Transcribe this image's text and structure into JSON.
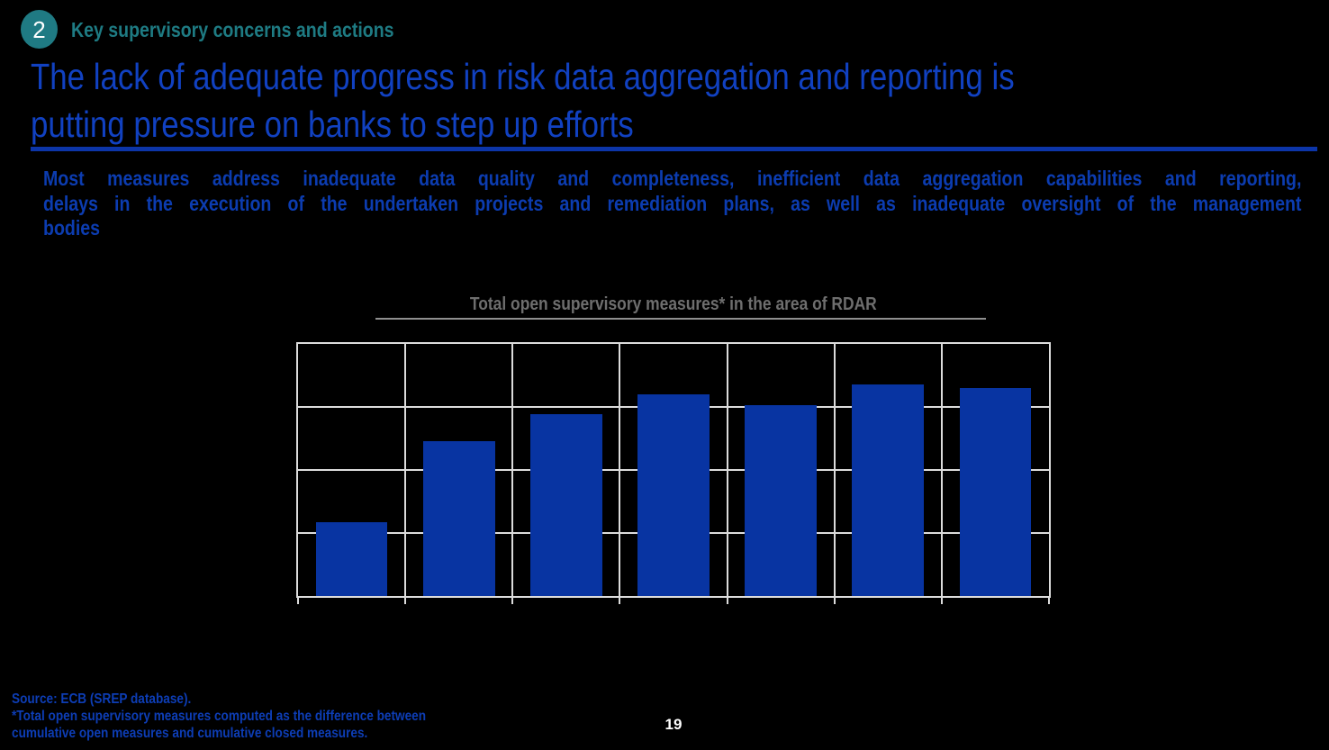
{
  "header": {
    "badge_number": "2",
    "label": "Key supervisory concerns and actions"
  },
  "title": {
    "line1": "The lack of adequate progress in risk data aggregation and reporting is",
    "line2": "putting pressure on banks to step up efforts"
  },
  "summary": {
    "lines": [
      "Most measures address inadequate data quality and completeness, inefficient data aggregation capabilities and reporting,",
      "delays in the execution of the undertaken projects and remediation plans, as well as inadequate oversight of the management",
      "bodies"
    ]
  },
  "chart": {
    "title": "Total open supervisory measures* in the area of RDAR"
  },
  "chart_data": {
    "type": "bar",
    "title": "Total open supervisory measures* in the area of RDAR",
    "categories": [
      "",
      "",
      "",
      "",
      "",
      "",
      ""
    ],
    "values": [
      1.17,
      2.46,
      2.89,
      3.2,
      3.03,
      3.36,
      3.3
    ],
    "ylim": [
      0,
      4
    ],
    "xlabel": "",
    "ylabel": "",
    "grid": true,
    "legend": false,
    "tick_labels_visible": false
  },
  "footnote": {
    "lines": [
      "Source: ECB (SREP database).",
      "*Total open supervisory measures computed as the difference between",
      "cumulative open measures and cumulative closed measures."
    ]
  },
  "page": {
    "number": "19"
  },
  "colors": {
    "background": "#000000",
    "badge_teal": "#1F7A83",
    "header_teal": "#1E7B83",
    "title_blue": "#1141C1",
    "title_rule_blue": "#0C35A8",
    "summary_blue": "#0C3CB0",
    "chart_title_gray": "#6E6E6E",
    "bar_blue": "#0834A2",
    "grid_gray": "#DCDCDC",
    "footnote_blue": "#0D3DB5",
    "page_number_white": "#FFFFFF"
  }
}
